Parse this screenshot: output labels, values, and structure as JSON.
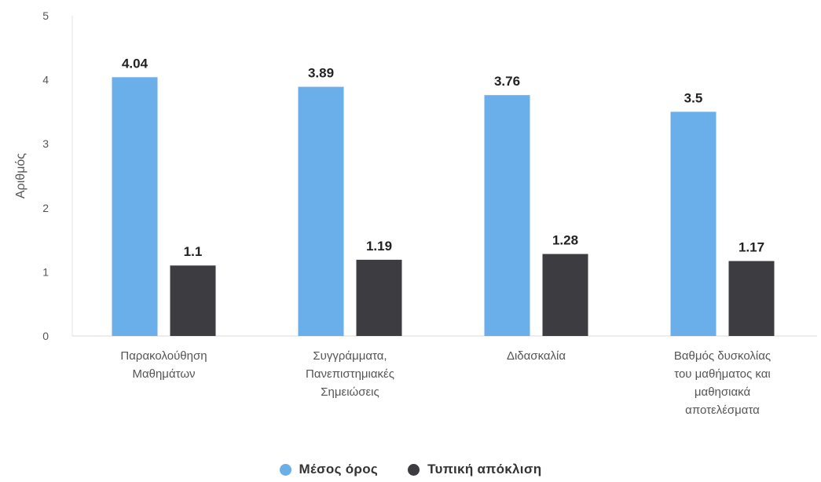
{
  "chart_data": {
    "type": "bar",
    "categories": [
      [
        "Παρακολούθηση",
        "Μαθημάτων"
      ],
      [
        "Συγγράμματα,",
        "Πανεπιστημιακές",
        "Σημειώσεις"
      ],
      [
        "Διδασκαλία"
      ],
      [
        "Βαθμός δυσκολίας",
        "του μαθήματος και",
        "μαθησιακά",
        "αποτελέσματα"
      ]
    ],
    "series": [
      {
        "name": "Μέσος όρος",
        "values": [
          4.04,
          3.89,
          3.76,
          3.5
        ],
        "labels": [
          "4.04",
          "3.89",
          "3.76",
          "3.5"
        ],
        "color": "#6aaeea"
      },
      {
        "name": "Τυπική απόκλιση",
        "values": [
          1.1,
          1.19,
          1.28,
          1.17
        ],
        "labels": [
          "1.1",
          "1.19",
          "1.28",
          "1.17"
        ],
        "color": "#3c3c41"
      }
    ],
    "ylabel": "Αριθμός",
    "ylim": [
      0,
      5
    ],
    "yticks": [
      "0",
      "1",
      "2",
      "3",
      "4",
      "5"
    ],
    "grid": false,
    "legend_position": "bottom-center"
  }
}
